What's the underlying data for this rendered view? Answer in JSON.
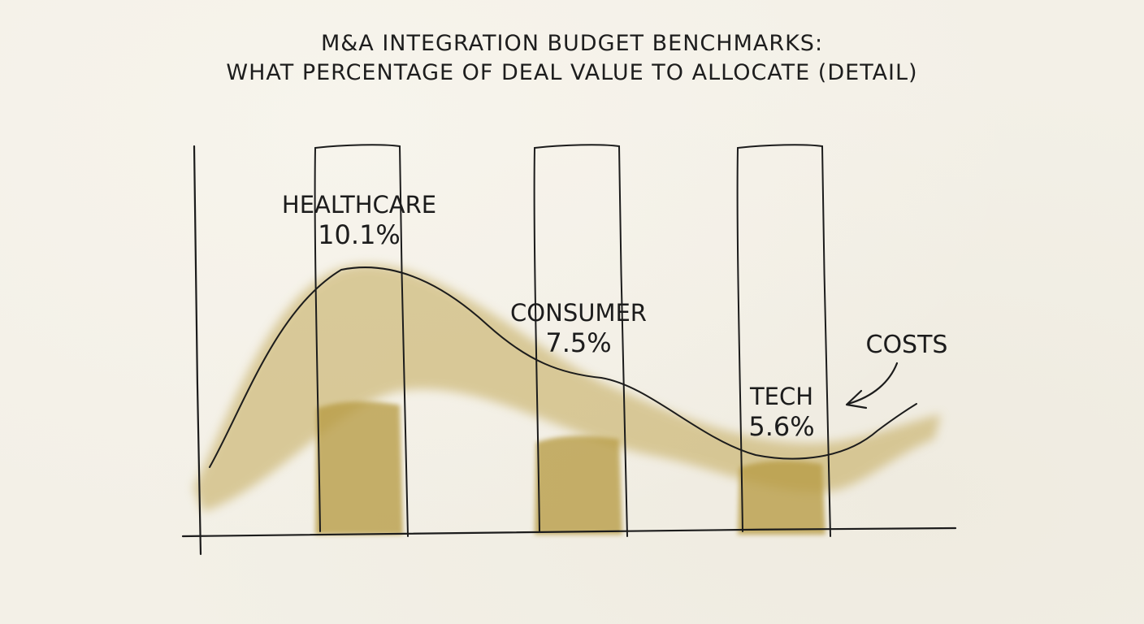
{
  "title": {
    "line1": "M&A INTEGRATION BUDGET BENCHMARKS:",
    "line2": "WHAT PERCENTAGE OF DEAL VALUE TO ALLOCATE (DETAIL)"
  },
  "colors": {
    "ink": "#1c1c1c",
    "wash": "#b89c45",
    "paper": "#f3f0e7"
  },
  "chart_data": {
    "type": "bar",
    "categories": [
      "HEALTHCARE",
      "CONSUMER",
      "TECH"
    ],
    "values": [
      10.1,
      7.5,
      5.6
    ],
    "data_labels": [
      "10.1%",
      "7.5%",
      "5.6%"
    ],
    "units": "%",
    "ylim": [
      0,
      18
    ],
    "grid": false,
    "legend": "none",
    "overlay_curve": {
      "type": "line",
      "name": "COSTS",
      "label": "COSTS"
    }
  }
}
